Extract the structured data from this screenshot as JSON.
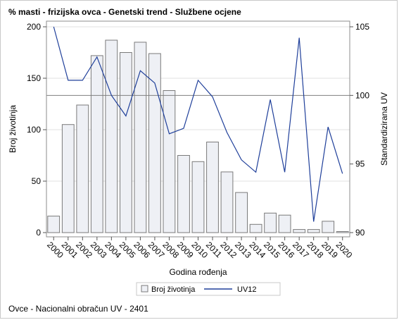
{
  "title": "% masti - frizijska ovca - Genetski trend - Službene ocjene",
  "footnote": "Ovce - Nacionalni obračun UV - 2401",
  "colors": {
    "bar_fill": "#eef0f5",
    "bar_stroke": "#7a7a7a",
    "line": "#1f3f9a",
    "reference_line": "#7f7f7f",
    "grid": "#e2e2e2"
  },
  "chart_data": {
    "type": "bar+line",
    "categories": [
      "2000",
      "2001",
      "2002",
      "2003",
      "2004",
      "2005",
      "2006",
      "2007",
      "2008",
      "2009",
      "2010",
      "2011",
      "2012",
      "2013",
      "2014",
      "2015",
      "2016",
      "2017",
      "2018",
      "2019",
      "2020"
    ],
    "series": [
      {
        "name": "Broj životinja",
        "type": "bar",
        "axis": "left",
        "values": [
          16,
          105,
          124,
          172,
          187,
          175,
          185,
          174,
          138,
          75,
          69,
          88,
          59,
          39,
          8,
          19,
          17,
          3,
          3,
          11,
          1
        ]
      },
      {
        "name": "UV12",
        "type": "line",
        "axis": "right",
        "values": [
          105.0,
          101.1,
          101.1,
          102.8,
          100.0,
          98.5,
          101.8,
          100.9,
          97.2,
          97.6,
          101.1,
          99.9,
          97.3,
          95.3,
          94.4,
          99.7,
          94.4,
          104.2,
          90.8,
          97.7,
          94.3
        ]
      }
    ],
    "xlabel": "Godina rođenja",
    "ylabel_left": "Broj životinja",
    "ylabel_right": "Standardizirana UV",
    "ylim_left": [
      0,
      200
    ],
    "yticks_left": [
      "0",
      "50",
      "100",
      "150",
      "200"
    ],
    "ylim_right": [
      90,
      105
    ],
    "yticks_right": [
      "90",
      "95",
      "100",
      "105"
    ],
    "reference_line_right": 100,
    "legend": [
      "Broj životinja",
      "UV12"
    ],
    "legend_position": "bottom"
  }
}
